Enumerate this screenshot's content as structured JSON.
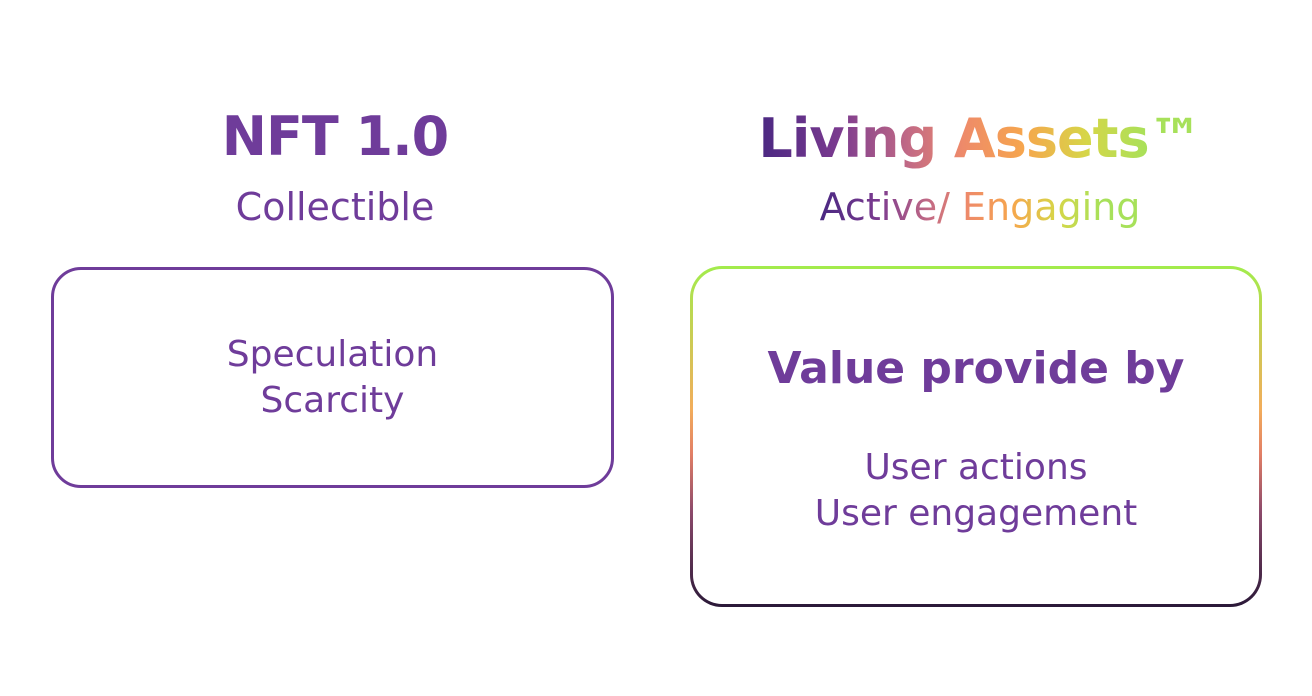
{
  "left": {
    "title": "NFT 1.0",
    "subtitle": "Collectible",
    "box_lines": [
      "Speculation",
      "Scarcity"
    ]
  },
  "right": {
    "title": "Living Assets™",
    "subtitle": "Active/ Engaging",
    "box_heading": "Value provide by",
    "box_lines": [
      "User actions",
      "User engagement"
    ]
  },
  "colors": {
    "primary_purple": "#6f3c9a",
    "gradient": [
      "#4a2882",
      "#c26a85",
      "#f6a64d",
      "#a7e15a"
    ],
    "border_gradient_top": "#a2ec4c",
    "border_gradient_bottom": "#2a1838"
  }
}
